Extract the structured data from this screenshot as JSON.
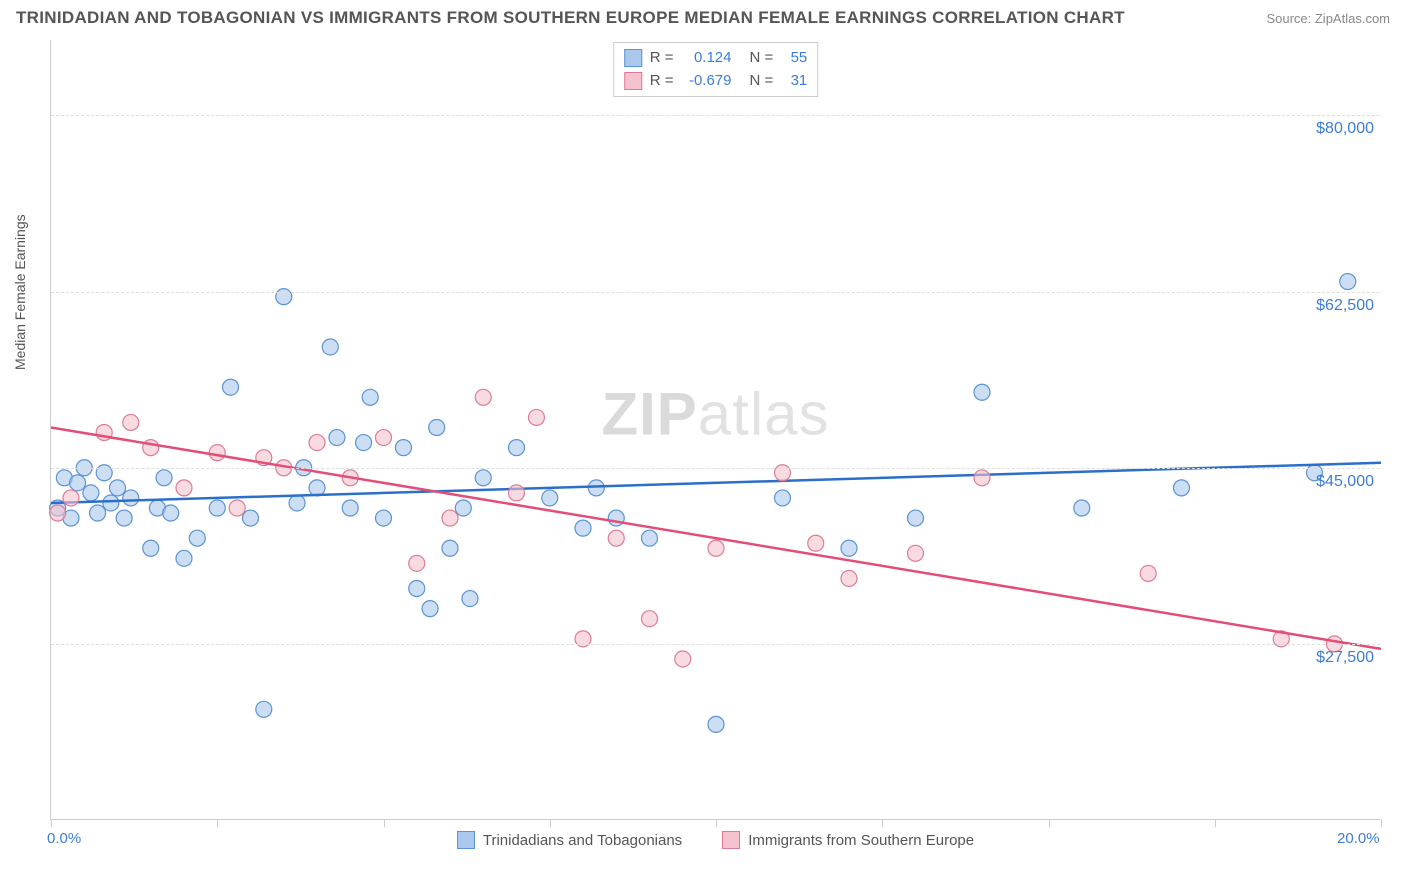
{
  "title": "TRINIDADIAN AND TOBAGONIAN VS IMMIGRANTS FROM SOUTHERN EUROPE MEDIAN FEMALE EARNINGS CORRELATION CHART",
  "source": "Source: ZipAtlas.com",
  "y_axis_label": "Median Female Earnings",
  "watermark_bold": "ZIP",
  "watermark_rest": "atlas",
  "chart": {
    "type": "scatter",
    "x_domain": [
      0,
      20
    ],
    "y_domain": [
      10000,
      87500
    ],
    "x_ticks": [
      0,
      2.5,
      5,
      7.5,
      10,
      12.5,
      15,
      17.5,
      20
    ],
    "x_tick_labels": {
      "0": "0.0%",
      "20": "20.0%"
    },
    "y_gridlines": [
      27500,
      45000,
      62500,
      80000
    ],
    "y_tick_labels": [
      "$27,500",
      "$45,000",
      "$62,500",
      "$80,000"
    ],
    "grid_color": "#dddddd",
    "axis_color": "#cccccc",
    "background": "#ffffff",
    "series": [
      {
        "name": "Trinidadians and Tobagonians",
        "color_fill": "#a9c8ec",
        "color_stroke": "#5b93d5",
        "line_color": "#2a6fc9",
        "r_value": "0.124",
        "n_value": "55",
        "regression": {
          "x1": 0,
          "y1": 41500,
          "x2": 20,
          "y2": 45500
        },
        "points": [
          [
            0.1,
            41000
          ],
          [
            0.2,
            44000
          ],
          [
            0.3,
            40000
          ],
          [
            0.4,
            43500
          ],
          [
            0.5,
            45000
          ],
          [
            0.6,
            42500
          ],
          [
            0.7,
            40500
          ],
          [
            0.8,
            44500
          ],
          [
            0.9,
            41500
          ],
          [
            1.0,
            43000
          ],
          [
            1.1,
            40000
          ],
          [
            1.2,
            42000
          ],
          [
            1.5,
            37000
          ],
          [
            1.6,
            41000
          ],
          [
            1.7,
            44000
          ],
          [
            1.8,
            40500
          ],
          [
            2.0,
            36000
          ],
          [
            2.2,
            38000
          ],
          [
            2.5,
            41000
          ],
          [
            2.7,
            53000
          ],
          [
            3.0,
            40000
          ],
          [
            3.2,
            21000
          ],
          [
            3.5,
            62000
          ],
          [
            3.7,
            41500
          ],
          [
            3.8,
            45000
          ],
          [
            4.0,
            43000
          ],
          [
            4.2,
            57000
          ],
          [
            4.3,
            48000
          ],
          [
            4.5,
            41000
          ],
          [
            4.7,
            47500
          ],
          [
            4.8,
            52000
          ],
          [
            5.0,
            40000
          ],
          [
            5.3,
            47000
          ],
          [
            5.5,
            33000
          ],
          [
            5.7,
            31000
          ],
          [
            5.8,
            49000
          ],
          [
            6.0,
            37000
          ],
          [
            6.2,
            41000
          ],
          [
            6.3,
            32000
          ],
          [
            6.5,
            44000
          ],
          [
            7.0,
            47000
          ],
          [
            7.5,
            42000
          ],
          [
            8.0,
            39000
          ],
          [
            8.2,
            43000
          ],
          [
            8.5,
            40000
          ],
          [
            9.0,
            38000
          ],
          [
            10.0,
            19500
          ],
          [
            11.0,
            42000
          ],
          [
            12.0,
            37000
          ],
          [
            13.0,
            40000
          ],
          [
            14.0,
            52500
          ],
          [
            15.5,
            41000
          ],
          [
            17.0,
            43000
          ],
          [
            19.0,
            44500
          ],
          [
            19.5,
            63500
          ]
        ]
      },
      {
        "name": "Immigrants from Southern Europe",
        "color_fill": "#f4c2cd",
        "color_stroke": "#e07a94",
        "line_color": "#e24e78",
        "r_value": "-0.679",
        "n_value": "31",
        "regression": {
          "x1": 0,
          "y1": 49000,
          "x2": 20,
          "y2": 27000
        },
        "points": [
          [
            0.1,
            40500
          ],
          [
            0.3,
            42000
          ],
          [
            0.8,
            48500
          ],
          [
            1.2,
            49500
          ],
          [
            1.5,
            47000
          ],
          [
            2.0,
            43000
          ],
          [
            2.5,
            46500
          ],
          [
            2.8,
            41000
          ],
          [
            3.2,
            46000
          ],
          [
            3.5,
            45000
          ],
          [
            4.0,
            47500
          ],
          [
            4.5,
            44000
          ],
          [
            5.0,
            48000
          ],
          [
            5.5,
            35500
          ],
          [
            6.0,
            40000
          ],
          [
            6.5,
            52000
          ],
          [
            7.0,
            42500
          ],
          [
            7.3,
            50000
          ],
          [
            8.0,
            28000
          ],
          [
            8.5,
            38000
          ],
          [
            9.0,
            30000
          ],
          [
            9.5,
            26000
          ],
          [
            10.0,
            37000
          ],
          [
            11.0,
            44500
          ],
          [
            11.5,
            37500
          ],
          [
            12.0,
            34000
          ],
          [
            13.0,
            36500
          ],
          [
            14.0,
            44000
          ],
          [
            16.5,
            34500
          ],
          [
            18.5,
            28000
          ],
          [
            19.3,
            27500
          ]
        ]
      }
    ]
  },
  "stats_legend_labels": {
    "R": "R =",
    "N": "N ="
  },
  "bottom_legend": [
    "Trinidadians and Tobagonians",
    "Immigrants from Southern Europe"
  ]
}
